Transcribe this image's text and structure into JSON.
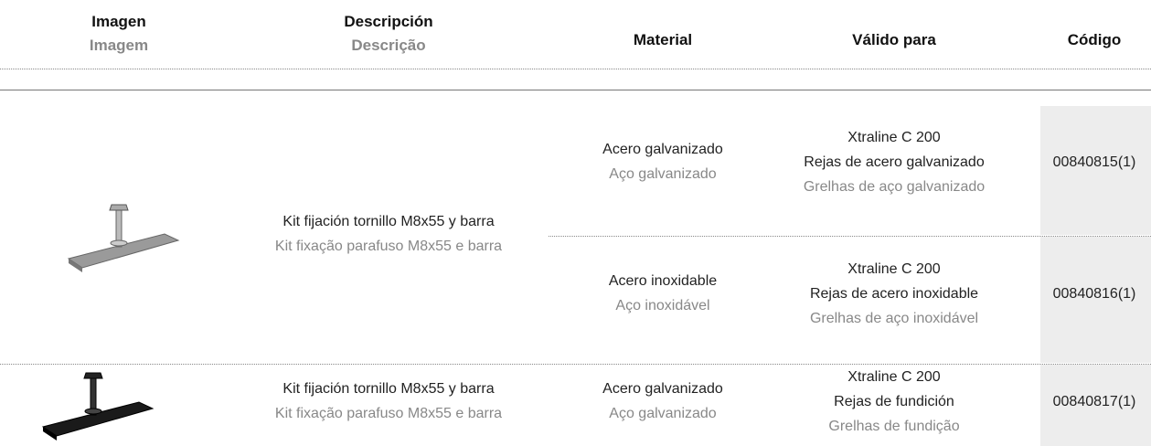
{
  "header": {
    "columns": [
      {
        "es": "Imagen",
        "pt": "Imagem"
      },
      {
        "es": "Descripción",
        "pt": "Descrição"
      },
      {
        "es": "Material"
      },
      {
        "es": "Válido para"
      },
      {
        "es": "Código"
      }
    ]
  },
  "table": {
    "rows": [
      {
        "description": {
          "es": "Kit fijación tornillo M8x55 y barra",
          "pt": "Kit fixação parafuso M8x55 e barra"
        },
        "variants": [
          {
            "material": {
              "es": "Acero galvanizado",
              "pt": "Aço galvanizado"
            },
            "valid": {
              "model": "Xtraline C 200",
              "es": "Rejas de acero galvanizado",
              "pt": "Grelhas de aço galvanizado"
            },
            "code": "00840815(1)"
          },
          {
            "material": {
              "es": "Acero inoxidable",
              "pt": "Aço inoxidável"
            },
            "valid": {
              "model": "Xtraline C 200",
              "es": "Rejas de acero inoxidable",
              "pt": "Grelhas de aço inoxidável"
            },
            "code": "00840816(1)"
          }
        ]
      },
      {
        "description": {
          "es": "Kit fijación tornillo M8x55 y barra",
          "pt": "Kit fixação parafuso M8x55 e barra"
        },
        "variants": [
          {
            "material": {
              "es": "Acero galvanizado",
              "pt": "Aço galvanizado"
            },
            "valid": {
              "model": "Xtraline C 200",
              "es": "Rejas de fundición",
              "pt": "Grelhas de fundição"
            },
            "code": "00840817(1)"
          }
        ]
      }
    ]
  }
}
